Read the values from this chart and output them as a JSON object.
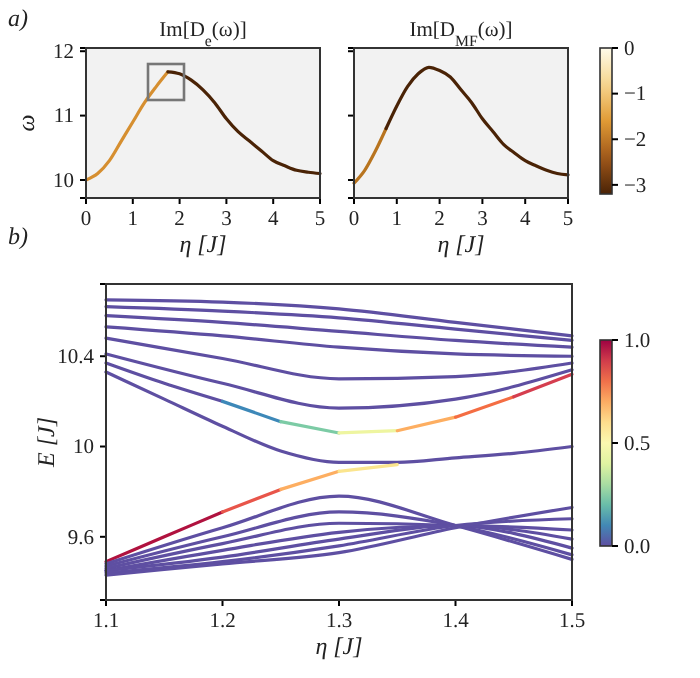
{
  "chart_data": [
    {
      "type": "line",
      "title": "Im[D$_{e}$(ω)]",
      "xlabel": "η [J]",
      "ylabel": "ω",
      "annotations": [
        "a)"
      ],
      "xlim": [
        0,
        5
      ],
      "xticks": [
        0,
        1,
        2,
        3,
        4,
        5
      ],
      "ylim": [
        9.72,
        12.05
      ],
      "yticks": [
        10,
        11,
        12
      ],
      "series": [
        {
          "color": "#d68f30",
          "x": [
            0,
            0.25,
            0.5,
            0.75,
            1,
            1.25,
            1.5,
            1.75
          ],
          "values": [
            10,
            10.1,
            10.3,
            10.6,
            10.9,
            11.2,
            11.45,
            11.68
          ]
        },
        {
          "color": "#4a2306",
          "x": [
            1.75,
            2,
            2.25,
            2.5,
            2.75,
            3,
            3.25,
            3.5,
            3.75,
            4,
            4.25,
            4.5,
            4.75,
            5
          ],
          "values": [
            11.68,
            11.65,
            11.55,
            11.4,
            11.2,
            10.95,
            10.75,
            10.6,
            10.45,
            10.3,
            10.22,
            10.15,
            10.12,
            10.1
          ]
        }
      ]
    },
    {
      "type": "line",
      "title": "Im[D$_{MF}$(ω)]",
      "xlabel": "η [J]",
      "tick_labels": "x",
      "xlim": [
        0,
        5
      ],
      "xticks": [
        0,
        1,
        2,
        3,
        4,
        5
      ],
      "ylim": [
        9.72,
        12.05
      ],
      "yticks": [
        10,
        11,
        12
      ],
      "clim": [
        -3.2,
        0
      ],
      "cticks": [
        0,
        {
          "value": -1,
          "label": "−1"
        },
        {
          "value": -2,
          "label": "−2"
        },
        {
          "value": -3,
          "label": "−3"
        }
      ],
      "series": [
        {
          "color": "#b8741f",
          "x": [
            0,
            0.25,
            0.5,
            0.75
          ],
          "values": [
            9.95,
            10.15,
            10.45,
            10.8
          ]
        },
        {
          "color": "#4a2306",
          "x": [
            0.75,
            1,
            1.25,
            1.5,
            1.75,
            2,
            2.25,
            2.5,
            2.75,
            3,
            3.25,
            3.5,
            3.75,
            4,
            4.25,
            4.5,
            4.75,
            5
          ],
          "values": [
            10.8,
            11.15,
            11.45,
            11.65,
            11.75,
            11.7,
            11.6,
            11.4,
            11.2,
            10.95,
            10.75,
            10.55,
            10.42,
            10.3,
            10.22,
            10.15,
            10.1,
            10.08
          ]
        }
      ]
    },
    {
      "type": "line",
      "xlabel": "η [J]",
      "ylabel": "E [J]",
      "annotations": [
        "b)"
      ],
      "xlim": [
        1.1,
        1.5
      ],
      "xticks": [
        1.1,
        1.2,
        1.3,
        1.4,
        1.5
      ],
      "ylim": [
        9.32,
        10.72
      ],
      "yticks": [
        9.6,
        10,
        10.4
      ],
      "clim": [
        0,
        1
      ],
      "cticks": [
        {
          "value": 0,
          "label": "0.0"
        },
        {
          "value": 0.5,
          "label": "0.5"
        },
        {
          "value": 1,
          "label": "1.0"
        }
      ],
      "x": [
        1.1,
        1.2,
        1.3,
        1.4,
        1.5
      ],
      "series": [
        {
          "color": "#5e4fa2",
          "values": [
            10.65,
            10.64,
            10.61,
            10.55,
            10.49
          ]
        },
        {
          "color": "#5e4fa2",
          "values": [
            10.62,
            10.6,
            10.57,
            10.52,
            10.47
          ]
        },
        {
          "color": "#5e4fa2",
          "values": [
            10.58,
            10.55,
            10.51,
            10.47,
            10.44
          ]
        },
        {
          "color": "#5e4fa2",
          "values": [
            10.53,
            10.49,
            10.44,
            10.41,
            10.4
          ]
        },
        {
          "color": "#5e4fa2",
          "values": [
            10.48,
            10.39,
            10.3,
            10.31,
            10.37
          ]
        },
        {
          "color": "#5e4fa2",
          "values": [
            10.41,
            10.28,
            10.17,
            10.21,
            10.34
          ]
        },
        {
          "color": "#5e4fa2",
          "x": [
            1.1,
            1.15,
            1.2
          ],
          "values": [
            10.37,
            10.28,
            10.2
          ]
        },
        {
          "color": "#3d88b8",
          "x": [
            1.2,
            1.25
          ],
          "values": [
            10.2,
            10.11
          ]
        },
        {
          "color": "#7ccba5",
          "x": [
            1.25,
            1.3
          ],
          "values": [
            10.11,
            10.06
          ]
        },
        {
          "color": "#eef5a0",
          "x": [
            1.3,
            1.35
          ],
          "values": [
            10.06,
            10.07
          ]
        },
        {
          "color": "#fdae61",
          "x": [
            1.35,
            1.4
          ],
          "values": [
            10.07,
            10.13
          ]
        },
        {
          "color": "#f46d43",
          "x": [
            1.4,
            1.45
          ],
          "values": [
            10.13,
            10.22
          ]
        },
        {
          "color": "#d53e4f",
          "x": [
            1.45,
            1.5
          ],
          "values": [
            10.22,
            10.32
          ]
        },
        {
          "color": "#5e4fa2",
          "x": [
            1.1,
            1.15,
            1.2,
            1.25,
            1.3,
            1.35,
            1.4,
            1.45,
            1.5
          ],
          "values": [
            10.33,
            10.21,
            10.09,
            9.98,
            9.93,
            9.93,
            9.95,
            9.97,
            10
          ]
        },
        {
          "color": "#b0123f",
          "x": [
            1.1,
            1.15,
            1.2
          ],
          "values": [
            9.49,
            9.6,
            9.71
          ]
        },
        {
          "color": "#e8554a",
          "x": [
            1.2,
            1.25
          ],
          "values": [
            9.71,
            9.81
          ]
        },
        {
          "color": "#fdae61",
          "x": [
            1.25,
            1.3
          ],
          "values": [
            9.81,
            9.89
          ]
        },
        {
          "color": "#fbe58e",
          "x": [
            1.3,
            1.35
          ],
          "values": [
            9.89,
            9.92
          ]
        },
        {
          "color": "#5e4fa2",
          "values": [
            9.48,
            9.64,
            9.78,
            9.65,
            9.5
          ]
        },
        {
          "color": "#5e4fa2",
          "values": [
            9.47,
            9.6,
            9.71,
            9.65,
            9.52
          ]
        },
        {
          "color": "#5e4fa2",
          "values": [
            9.46,
            9.57,
            9.66,
            9.65,
            9.55
          ]
        },
        {
          "color": "#5e4fa2",
          "values": [
            9.45,
            9.54,
            9.62,
            9.65,
            9.59
          ]
        },
        {
          "color": "#5e4fa2",
          "values": [
            9.45,
            9.51,
            9.59,
            9.65,
            9.63
          ]
        },
        {
          "color": "#5e4fa2",
          "values": [
            9.44,
            9.49,
            9.56,
            9.65,
            9.68
          ]
        },
        {
          "color": "#5e4fa2",
          "values": [
            9.43,
            9.48,
            9.53,
            9.64,
            9.73
          ]
        }
      ]
    }
  ]
}
